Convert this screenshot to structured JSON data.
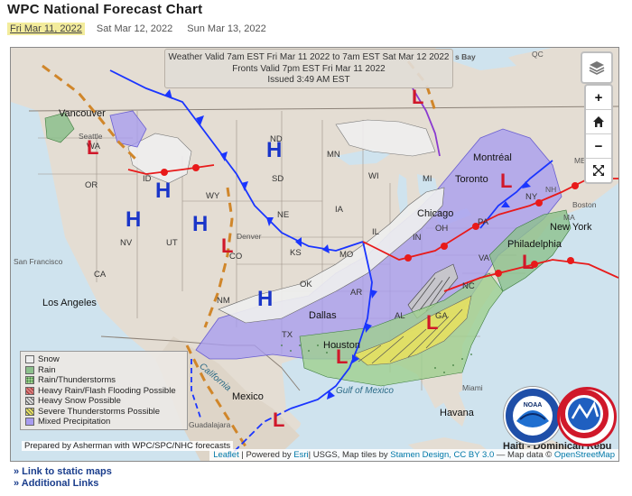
{
  "page": {
    "title": "WPC National Forecast Chart"
  },
  "tabs": [
    {
      "label": "Fri Mar 11, 2022",
      "active": true
    },
    {
      "label": "Sat Mar 12, 2022",
      "active": false
    },
    {
      "label": "Sun Mar 13, 2022",
      "active": false
    }
  ],
  "valid_box": {
    "line1": "Weather Valid 7am EST Fri Mar 11 2022 to 7am EST Sat Mar 12 2022",
    "line2": "Fronts Valid 7pm EST Fri Mar 11 2022",
    "line3": "Issued 3:49 AM EST"
  },
  "map_controls": {
    "zoom_in": "+",
    "home": "⌂",
    "zoom_out": "−",
    "fullscreen": "⤢"
  },
  "legend": [
    {
      "label": "Snow",
      "color": "#eeeeee"
    },
    {
      "label": "Rain",
      "color": "#8cc08c"
    },
    {
      "label": "Rain/Thunderstorms",
      "color": "#9fcf8f"
    },
    {
      "label": "Heavy Rain/Flash Flooding Possible",
      "color": "#d88080"
    },
    {
      "label": "Heavy Snow Possible",
      "color": "#c8c8c8"
    },
    {
      "label": "Severe Thunderstorms Possible",
      "color": "#e6e060"
    },
    {
      "label": "Mixed Precipitation",
      "color": "#a89cf0"
    }
  ],
  "prepared_by": "Prepared by Asherman with WPC/SPC/NHC forecasts",
  "attribution": {
    "leaflet": "Leaflet",
    "powered": "| Powered by",
    "esri": "Esri",
    "usgs": "| USGS, Map tiles by",
    "stamen": "Stamen Design,",
    "cc": "CC BY 3.0",
    "data": "— Map data ©",
    "osm": "OpenStreetMap"
  },
  "state_labels": [
    "WA",
    "OR",
    "ID",
    "WY",
    "NV",
    "UT",
    "CO",
    "ND",
    "SD",
    "NE",
    "KS",
    "MN",
    "IA",
    "WI",
    "IL",
    "MO",
    "OK",
    "TX",
    "AR",
    "MI",
    "OH",
    "IN",
    "PA",
    "NY",
    "VA",
    "NC",
    "AL",
    "GA",
    "NM",
    "CA",
    "NH",
    "MA",
    "ME"
  ],
  "place_labels": {
    "vancouver": "Vancouver",
    "seattle": "Seattle",
    "san_francisco": "San Francisco",
    "los_angeles": "Los Angeles",
    "denver": "Denver",
    "chicago": "Chicago",
    "toronto": "Toronto",
    "montreal": "Montréal",
    "new_york": "New York",
    "philadelphia": "Philadelphia",
    "boston": "Boston",
    "dallas": "Dallas",
    "houston": "Houston",
    "mexico": "Mexico",
    "guadalajara": "Guadalajara",
    "havana": "Havana",
    "miami": "Miami",
    "gulf_of_mexico": "Gulf of Mexico",
    "california_water": "California",
    "haiti": "Haiti - Dominican Repu",
    "qc": "QC",
    "bay": "s Bay"
  },
  "pressure_systems": {
    "high": "H",
    "low": "L"
  },
  "logos": {
    "noaa": "NOAA",
    "nws": "NATIONAL WEATHER SERVICE"
  },
  "bottom_links": [
    {
      "label": "» Link to static maps"
    },
    {
      "label": "» Additional Links"
    }
  ],
  "colors": {
    "mixed_precip": "#a89cf0",
    "snow": "#eeeeee",
    "rain": "#8cc08c",
    "severe": "#e6e060",
    "high": "#1a35c9",
    "low": "#d0182a",
    "cold_front": "#1a35ff",
    "warm_front": "#e81a1a",
    "trough": "#d0862a"
  }
}
